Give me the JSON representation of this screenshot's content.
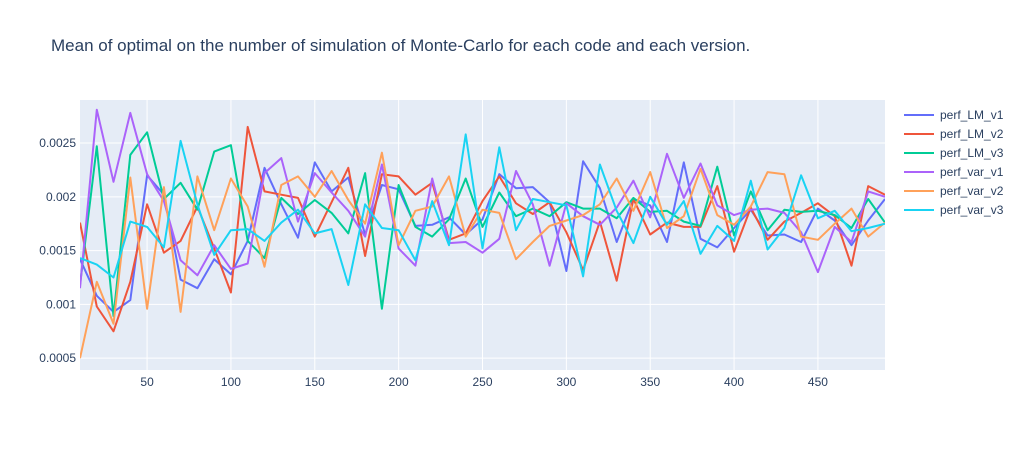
{
  "chart_data": {
    "type": "line",
    "title": "Mean of optimal on the number of simulation of Monte-Carlo for each code and each version.",
    "xlabel": "",
    "ylabel": "",
    "xlim": [
      10,
      490
    ],
    "ylim": [
      0.00039,
      0.0029
    ],
    "x_ticks": [
      50,
      100,
      150,
      200,
      250,
      300,
      350,
      400,
      450
    ],
    "y_ticks": [
      0.0005,
      0.001,
      0.0015,
      0.002,
      0.0025
    ],
    "y_tick_labels": [
      "0.0005",
      "0.001",
      "0.0015",
      "0.002",
      "0.0025"
    ],
    "grid": true,
    "legend_position": "top-right",
    "background": "#e5ecf6",
    "x": [
      10,
      20,
      30,
      40,
      50,
      60,
      70,
      80,
      90,
      100,
      110,
      120,
      130,
      140,
      150,
      160,
      170,
      180,
      190,
      200,
      210,
      220,
      230,
      240,
      250,
      260,
      270,
      280,
      290,
      300,
      310,
      320,
      330,
      340,
      350,
      360,
      370,
      380,
      390,
      400,
      410,
      420,
      430,
      440,
      450,
      460,
      470,
      480,
      490
    ],
    "series": [
      {
        "name": "perf_LM_v1",
        "color": "#636efa",
        "values": [
          0.00142,
          0.00108,
          0.00093,
          0.00104,
          0.0022,
          0.00202,
          0.00123,
          0.00115,
          0.00142,
          0.00128,
          0.00159,
          0.00227,
          0.00193,
          0.00162,
          0.00232,
          0.00205,
          0.00218,
          0.00165,
          0.00211,
          0.00207,
          0.00173,
          0.00174,
          0.00181,
          0.00165,
          0.00179,
          0.00221,
          0.00208,
          0.00209,
          0.00195,
          0.00131,
          0.00233,
          0.00208,
          0.00158,
          0.00198,
          0.00192,
          0.00158,
          0.00232,
          0.00161,
          0.00153,
          0.00171,
          0.00188,
          0.00164,
          0.00165,
          0.00158,
          0.00189,
          0.00178,
          0.00155,
          0.00178,
          0.00198
        ]
      },
      {
        "name": "perf_LM_v2",
        "color": "#ef553b",
        "values": [
          0.00176,
          0.00098,
          0.00075,
          0.00121,
          0.00193,
          0.00148,
          0.00159,
          0.00191,
          0.00152,
          0.00111,
          0.00265,
          0.00205,
          0.00202,
          0.00199,
          0.00163,
          0.00195,
          0.00227,
          0.00145,
          0.00221,
          0.00219,
          0.00202,
          0.00213,
          0.0016,
          0.00166,
          0.00196,
          0.00219,
          0.00194,
          0.00184,
          0.00195,
          0.00167,
          0.00132,
          0.00177,
          0.00122,
          0.00198,
          0.00165,
          0.00176,
          0.00172,
          0.00172,
          0.0021,
          0.00149,
          0.0019,
          0.0016,
          0.00177,
          0.00185,
          0.00194,
          0.00182,
          0.00136,
          0.0021,
          0.00202
        ]
      },
      {
        "name": "perf_LM_v3",
        "color": "#00cc96",
        "values": [
          0.00118,
          0.00247,
          0.00089,
          0.00239,
          0.0026,
          0.00198,
          0.00213,
          0.00188,
          0.00242,
          0.00248,
          0.00159,
          0.00143,
          0.00199,
          0.00184,
          0.00197,
          0.00185,
          0.00166,
          0.00222,
          0.00096,
          0.00211,
          0.00172,
          0.00163,
          0.00179,
          0.00217,
          0.00172,
          0.00204,
          0.00182,
          0.00189,
          0.00182,
          0.00195,
          0.00189,
          0.00189,
          0.0018,
          0.00199,
          0.00186,
          0.00187,
          0.00177,
          0.00173,
          0.00228,
          0.00164,
          0.00205,
          0.00169,
          0.00188,
          0.00186,
          0.00187,
          0.00183,
          0.00171,
          0.00198,
          0.00176
        ]
      },
      {
        "name": "perf_var_v1",
        "color": "#ab63fa",
        "values": [
          0.00115,
          0.00281,
          0.00214,
          0.00278,
          0.00221,
          0.00196,
          0.00141,
          0.00127,
          0.00155,
          0.00133,
          0.00138,
          0.00222,
          0.00236,
          0.00177,
          0.00222,
          0.00204,
          0.00187,
          0.00163,
          0.0023,
          0.00152,
          0.00136,
          0.00217,
          0.00157,
          0.00158,
          0.00148,
          0.00161,
          0.00224,
          0.00193,
          0.00136,
          0.00194,
          0.00182,
          0.00174,
          0.0019,
          0.00215,
          0.00181,
          0.0024,
          0.00199,
          0.00231,
          0.00192,
          0.00183,
          0.00188,
          0.00189,
          0.00185,
          0.00167,
          0.0013,
          0.00172,
          0.00158,
          0.00205,
          0.002
        ]
      },
      {
        "name": "perf_var_v2",
        "color": "#ffa15a",
        "values": [
          0.0005,
          0.00121,
          0.00082,
          0.00218,
          0.00096,
          0.00209,
          0.00093,
          0.00219,
          0.00169,
          0.00217,
          0.00191,
          0.00135,
          0.00211,
          0.00219,
          0.002,
          0.00224,
          0.00197,
          0.00175,
          0.00241,
          0.00155,
          0.00187,
          0.00191,
          0.00219,
          0.00163,
          0.00188,
          0.00185,
          0.00142,
          0.00158,
          0.00173,
          0.00178,
          0.00183,
          0.00193,
          0.00217,
          0.00187,
          0.00223,
          0.00171,
          0.00182,
          0.00226,
          0.00183,
          0.00174,
          0.00191,
          0.00223,
          0.00221,
          0.00163,
          0.0016,
          0.00175,
          0.00189,
          0.00163,
          0.00176
        ]
      },
      {
        "name": "perf_var_v3",
        "color": "#19d3f3",
        "values": [
          0.00143,
          0.00137,
          0.00125,
          0.00177,
          0.00172,
          0.00153,
          0.00252,
          0.00193,
          0.00146,
          0.00169,
          0.0017,
          0.00159,
          0.00176,
          0.00188,
          0.00166,
          0.0017,
          0.00118,
          0.00193,
          0.00171,
          0.00169,
          0.00141,
          0.00196,
          0.00155,
          0.00258,
          0.00152,
          0.00246,
          0.00169,
          0.00198,
          0.00195,
          0.00192,
          0.00126,
          0.0023,
          0.00187,
          0.00157,
          0.002,
          0.00174,
          0.00196,
          0.00147,
          0.00173,
          0.00159,
          0.00215,
          0.00151,
          0.00171,
          0.0022,
          0.0018,
          0.00187,
          0.00168,
          0.00171,
          0.00175
        ]
      }
    ]
  }
}
